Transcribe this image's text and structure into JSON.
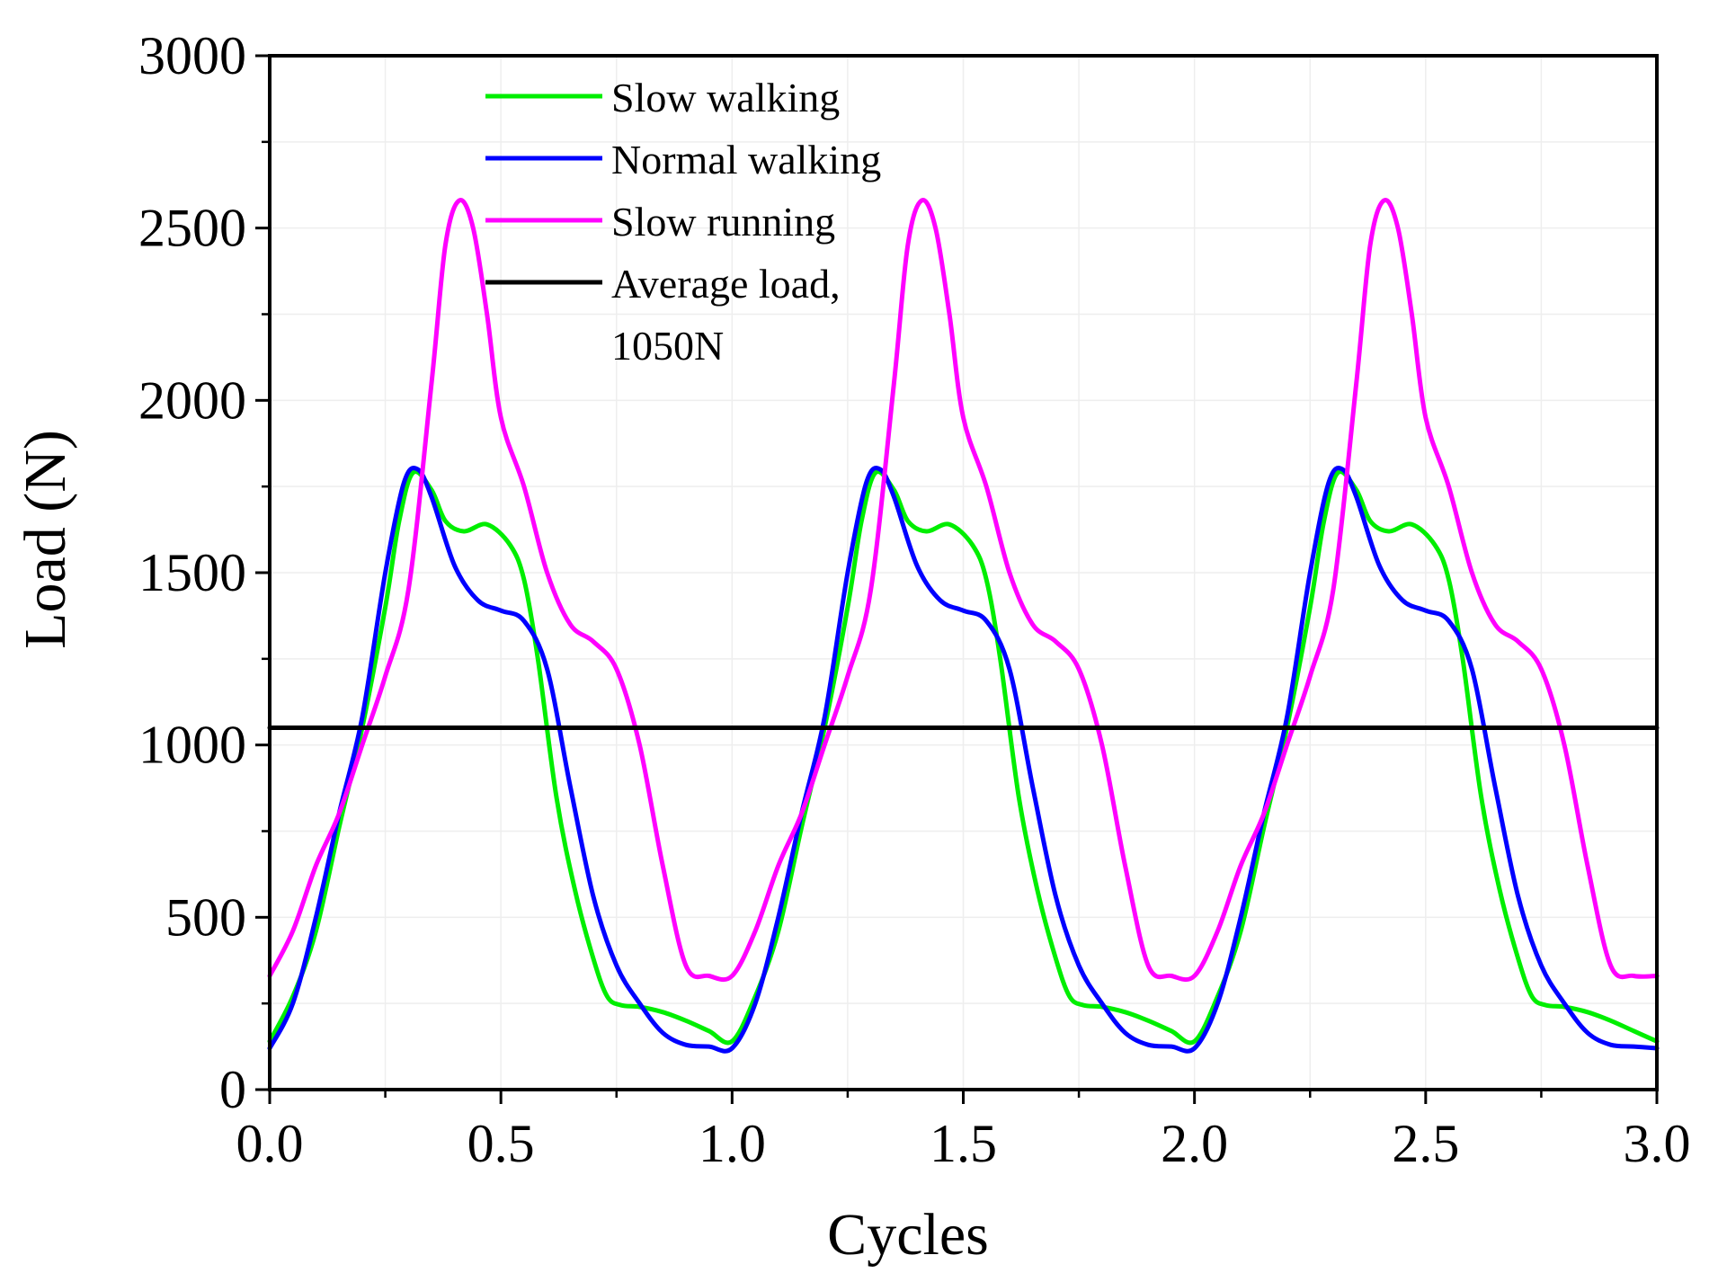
{
  "chart_data": {
    "type": "line",
    "title": "",
    "xlabel": "Cycles",
    "ylabel": "Load (N)",
    "xlim": [
      0,
      3
    ],
    "ylim": [
      0,
      3000
    ],
    "xticks": [
      "0.0",
      "0.5",
      "1.0",
      "1.5",
      "2.0",
      "2.5",
      "3.0"
    ],
    "yticks": [
      "0",
      "500",
      "1000",
      "1500",
      "2000",
      "2500",
      "3000"
    ],
    "grid": true,
    "legend_position": "top-left",
    "legend": {
      "line1": "Slow walking",
      "line2": "Normal walking",
      "line3": "Slow running",
      "line4a": "Average load,",
      "line4b": "1050N"
    },
    "series": [
      {
        "name": "Slow walking",
        "color": "#00ee00",
        "cycle_x": [
          0.0,
          0.05,
          0.1,
          0.15,
          0.2,
          0.25,
          0.28,
          0.31,
          0.35,
          0.38,
          0.42,
          0.47,
          0.52,
          0.55,
          0.58,
          0.62,
          0.66,
          0.7,
          0.73,
          0.76,
          0.8,
          0.85,
          0.9,
          0.95,
          1.0
        ],
        "cycle_y": [
          140,
          270,
          460,
          760,
          1050,
          1400,
          1650,
          1790,
          1740,
          1650,
          1620,
          1640,
          1580,
          1480,
          1250,
          850,
          580,
          380,
          270,
          245,
          240,
          225,
          200,
          170,
          140
        ]
      },
      {
        "name": "Normal walking",
        "color": "#0000ff",
        "cycle_x": [
          0.0,
          0.05,
          0.1,
          0.15,
          0.2,
          0.25,
          0.29,
          0.32,
          0.35,
          0.4,
          0.45,
          0.5,
          0.55,
          0.6,
          0.65,
          0.7,
          0.75,
          0.8,
          0.85,
          0.9,
          0.95,
          1.0
        ],
        "cycle_y": [
          120,
          250,
          500,
          800,
          1080,
          1500,
          1760,
          1800,
          1720,
          1520,
          1420,
          1390,
          1360,
          1220,
          880,
          560,
          360,
          250,
          165,
          130,
          125,
          120
        ]
      },
      {
        "name": "Slow running",
        "color": "#ff00ff",
        "cycle_x": [
          0.0,
          0.05,
          0.1,
          0.15,
          0.2,
          0.25,
          0.3,
          0.35,
          0.38,
          0.41,
          0.44,
          0.47,
          0.5,
          0.55,
          0.6,
          0.65,
          0.7,
          0.75,
          0.8,
          0.85,
          0.9,
          0.95,
          1.0
        ],
        "cycle_y": [
          330,
          460,
          650,
          800,
          1000,
          1200,
          1450,
          2050,
          2450,
          2580,
          2500,
          2250,
          1950,
          1750,
          1500,
          1350,
          1300,
          1220,
          1000,
          650,
          360,
          330,
          330
        ]
      },
      {
        "name": "Average load, 1050N",
        "color": "#000000",
        "x": [
          0.0,
          3.0
        ],
        "y": [
          1050,
          1050
        ]
      }
    ]
  }
}
